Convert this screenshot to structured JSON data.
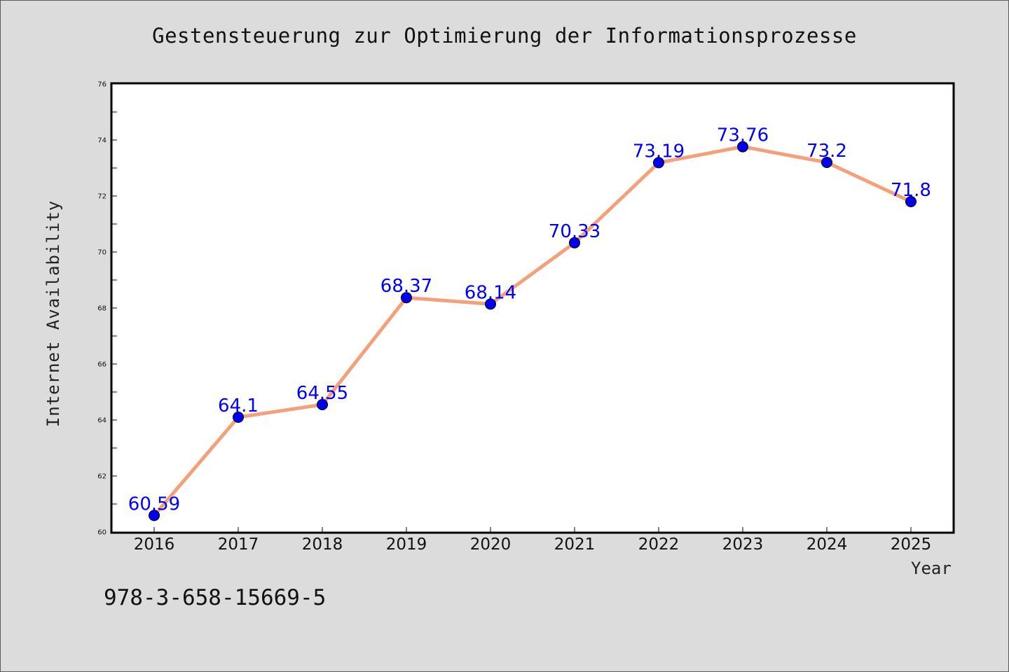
{
  "chart_data": {
    "type": "line",
    "title": "Gestensteuerung zur Optimierung der Informationsprozesse",
    "xlabel": "Year",
    "ylabel": "Internet Availability",
    "x": [
      "2016",
      "2017",
      "2018",
      "2019",
      "2020",
      "2021",
      "2022",
      "2023",
      "2024",
      "2025"
    ],
    "series": [
      {
        "values": [
          60.59,
          64.1,
          64.55,
          68.37,
          68.14,
          70.33,
          73.19,
          73.76,
          73.2,
          71.8
        ],
        "data_labels": [
          "60.59",
          "64.1",
          "64.55",
          "68.37",
          "68.14",
          "70.33",
          "73.19",
          "73.76",
          "73.2",
          "71.8"
        ]
      }
    ],
    "ylim": [
      60,
      76
    ],
    "yticks": [
      60,
      62,
      64,
      66,
      68,
      70,
      72,
      74,
      76
    ],
    "grid": false,
    "legend": "none",
    "colors": {
      "line": "#f4a07a",
      "marker": "#0000ee",
      "data_label": "#0000ff",
      "plot_background": "#ffffff",
      "page_background": "#dcdcdc"
    }
  },
  "footer_note": "978-3-658-15669-5"
}
